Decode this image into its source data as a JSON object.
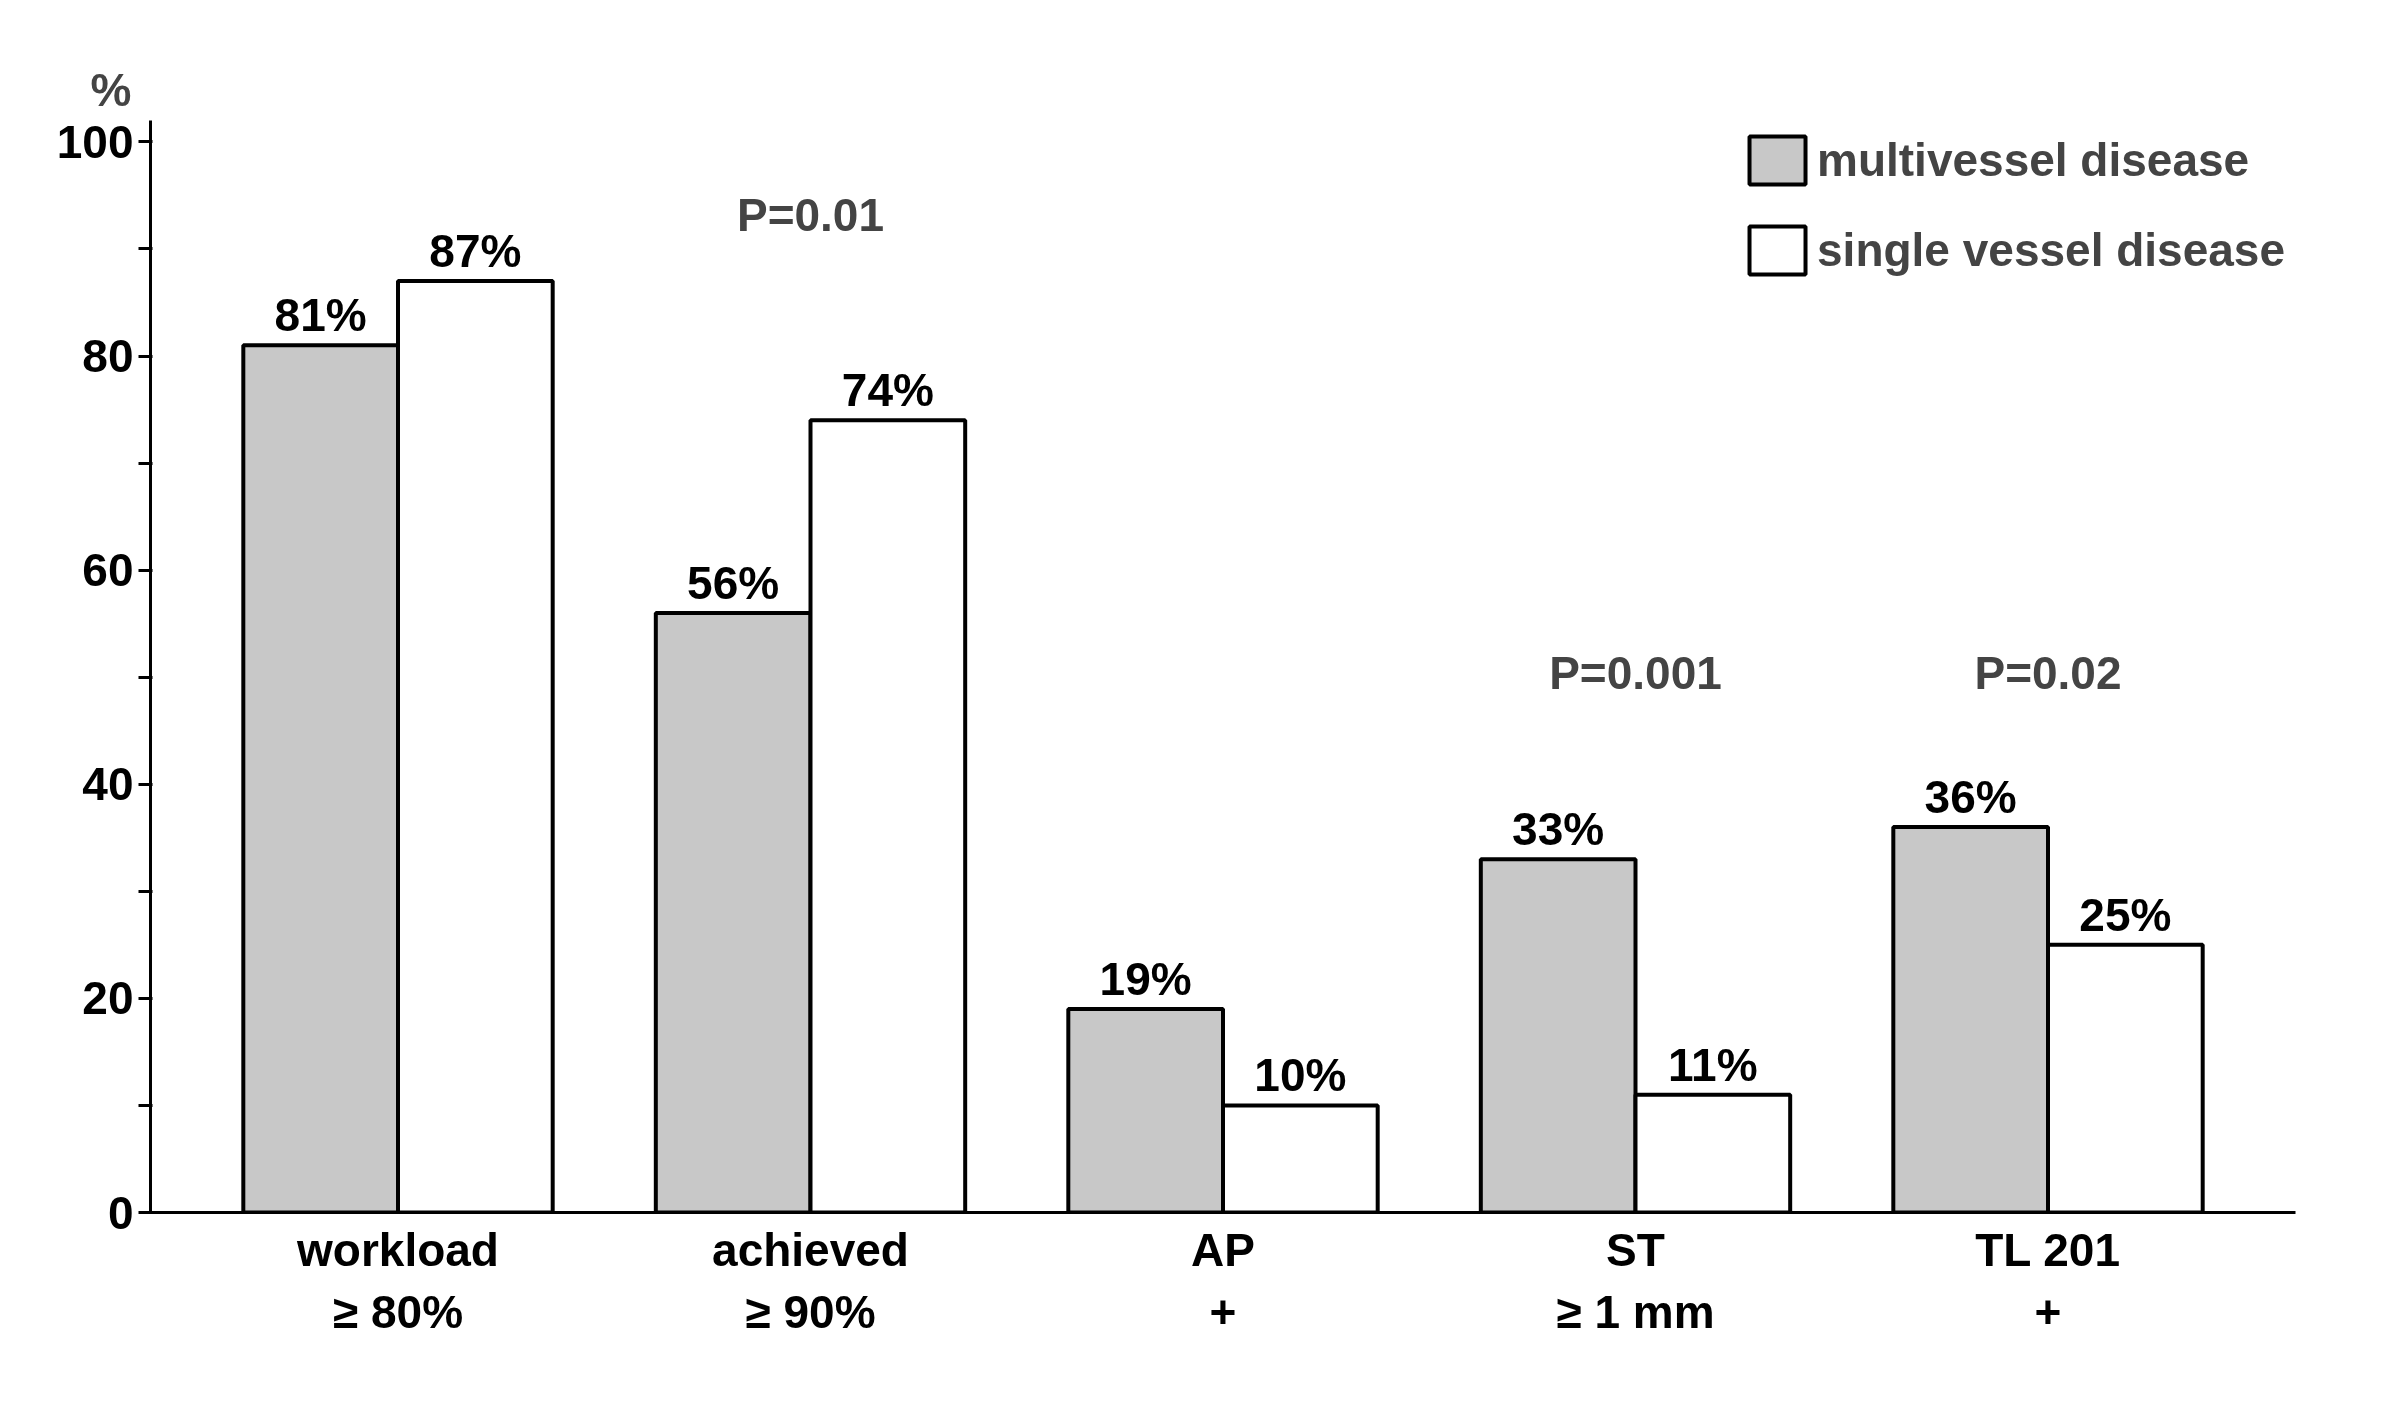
{
  "chart_data": {
    "type": "bar",
    "ylabel": "%",
    "categories": [
      "workload\n≥ 80%",
      "achieved\n≥ 90%",
      "AP\n+",
      "ST\n≥ 1 mm",
      "TL 201\n+"
    ],
    "series": [
      {
        "name": "multivessel disease",
        "color": "#c8c8c8",
        "values": [
          81,
          56,
          19,
          33,
          36
        ],
        "value_labels": [
          "81%",
          "56%",
          "19%",
          "33%",
          "36%"
        ]
      },
      {
        "name": "single vessel disease",
        "color": "#ffffff",
        "values": [
          87,
          74,
          10,
          11,
          25
        ],
        "value_labels": [
          "87%",
          "74%",
          "10%",
          "11%",
          "25%"
        ]
      }
    ],
    "ylim": [
      0,
      102
    ],
    "yticks": [
      0,
      {
        "value": 10,
        "label": null
      },
      20,
      {
        "value": 30,
        "label": null
      },
      40,
      {
        "value": 50,
        "label": null
      },
      60,
      {
        "value": 70,
        "label": null
      },
      80,
      {
        "value": 90,
        "label": null
      },
      100
    ],
    "annotations": [
      "P=0.01",
      "P=0.001",
      "P=0.02"
    ],
    "grid": false,
    "legend": "top right"
  }
}
